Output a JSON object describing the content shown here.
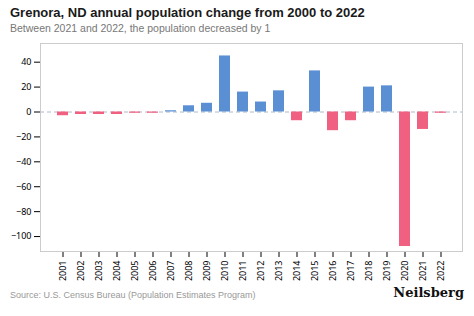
{
  "chart_data": {
    "type": "bar",
    "title": "Grenora, ND annual population change from 2000 to 2022",
    "subtitle": "Between 2021 and 2022, the population decreased by 1",
    "annotations": [
      "Source: U.S. Census Bureau (Population Estimates Program)",
      "Neilsberg"
    ],
    "categories": [
      "2001",
      "2002",
      "2003",
      "2004",
      "2005",
      "2006",
      "2007",
      "2008",
      "2009",
      "2010",
      "2011",
      "2012",
      "2013",
      "2014",
      "2015",
      "2016",
      "2017",
      "2018",
      "2019",
      "2020",
      "2021",
      "2022"
    ],
    "values": [
      -3,
      -2,
      -2,
      -2,
      -1,
      -1,
      1,
      5,
      7,
      45,
      16,
      8,
      17,
      -7,
      33,
      -15,
      -7,
      20,
      21,
      -108,
      -14,
      -1
    ],
    "colors": [
      "#F06080",
      "#F06080",
      "#F06080",
      "#F06080",
      "#F06080",
      "#F06080",
      "#5B8FD4",
      "#5B8FD4",
      "#5B8FD4",
      "#5B8FD4",
      "#5B8FD4",
      "#5B8FD4",
      "#5B8FD4",
      "#F06080",
      "#5B8FD4",
      "#F06080",
      "#F06080",
      "#5B8FD4",
      "#5B8FD4",
      "#F06080",
      "#F06080",
      "#F06080"
    ],
    "ylim": [
      -112,
      55
    ],
    "yticks": [
      -100,
      -80,
      -60,
      -40,
      -20,
      0,
      20,
      40
    ],
    "grid": false
  }
}
